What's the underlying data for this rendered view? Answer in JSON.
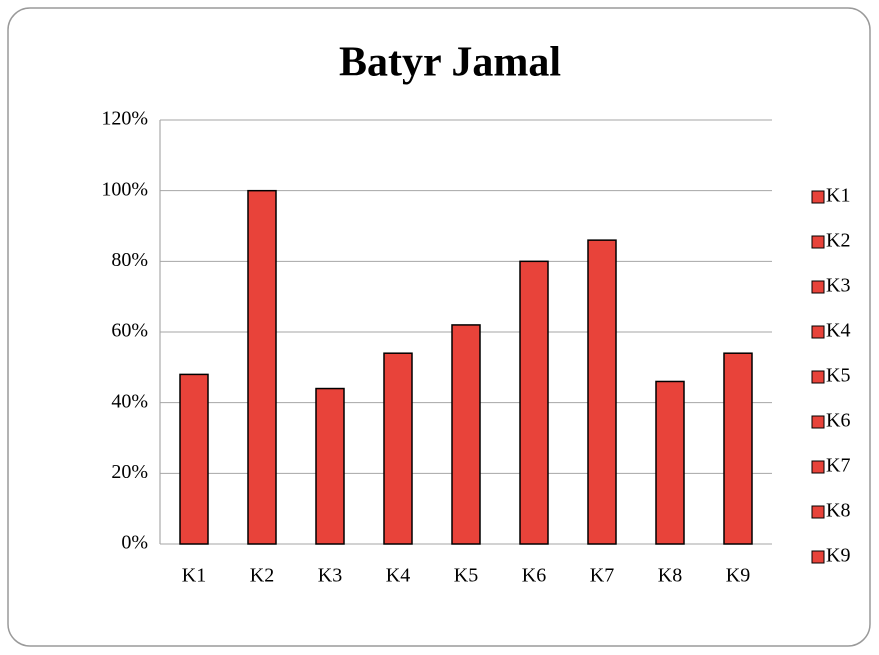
{
  "chart_data": {
    "type": "bar",
    "title": "Batyr Jamal",
    "categories": [
      "K1",
      "K2",
      "K3",
      "K4",
      "K5",
      "K6",
      "K7",
      "K8",
      "K9"
    ],
    "values": [
      48,
      100,
      44,
      54,
      62,
      80,
      86,
      46,
      54
    ],
    "color": "#e8433a",
    "ylim": [
      0,
      120
    ],
    "yticks": [
      {
        "value": 0,
        "label": "0%"
      },
      {
        "value": 20,
        "label": "20%"
      },
      {
        "value": 40,
        "label": "40%"
      },
      {
        "value": 60,
        "label": "60%"
      },
      {
        "value": 80,
        "label": "80%"
      },
      {
        "value": 100,
        "label": "100%"
      },
      {
        "value": 120,
        "label": "120%"
      }
    ],
    "grid": true,
    "legend": "right"
  }
}
